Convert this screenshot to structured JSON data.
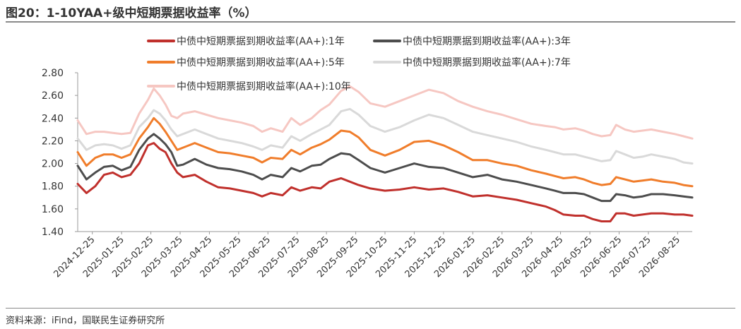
{
  "header": {
    "title": "图20：1-10YAA+级中短期票据收益率（%）"
  },
  "footer": {
    "source": "资料来源：iFind，国联民生证券研究所"
  },
  "chart_data": {
    "type": "line",
    "title": "图20：1-10YAA+级中短期票据收益率（%）",
    "xlabel": "",
    "ylabel": "",
    "ylim": [
      1.4,
      2.8
    ],
    "yticks": [
      "1.40",
      "1.60",
      "1.80",
      "2.00",
      "2.20",
      "2.40",
      "2.60",
      "2.80"
    ],
    "x_tick_labels": [
      "2024-12-25",
      "2025-01-25",
      "2025-02-25",
      "2025-03-25",
      "2025-04-25",
      "2025-05-25",
      "2025-06-25",
      "2025-07-25",
      "2025-08-25",
      "2025-09-25",
      "2025-10-25",
      "2025-11-25",
      "2025-12-25",
      "2026-01-25",
      "2026-02-25",
      "2026-03-25",
      "2026-04-25",
      "2026-05-25",
      "2026-06-25",
      "2026-07-25",
      "2026-08-25"
    ],
    "x_index_note": "x is month index from 2024-12-25 (0) to 2026-08-25 (20)",
    "grid": false,
    "legend_placement": "top",
    "series": [
      {
        "name": "中债中短期票据到期收益率(AA+):1年",
        "color": "#c0302c",
        "points": [
          [
            0,
            1.82
          ],
          [
            0.3,
            1.74
          ],
          [
            0.6,
            1.8
          ],
          [
            0.9,
            1.9
          ],
          [
            1.2,
            1.92
          ],
          [
            1.5,
            1.88
          ],
          [
            1.8,
            1.9
          ],
          [
            2.1,
            2.0
          ],
          [
            2.4,
            2.16
          ],
          [
            2.6,
            2.18
          ],
          [
            2.8,
            2.13
          ],
          [
            3.0,
            2.1
          ],
          [
            3.2,
            2.0
          ],
          [
            3.4,
            1.92
          ],
          [
            3.6,
            1.88
          ],
          [
            4.0,
            1.9
          ],
          [
            4.4,
            1.84
          ],
          [
            4.8,
            1.79
          ],
          [
            5.2,
            1.78
          ],
          [
            5.6,
            1.76
          ],
          [
            6.0,
            1.74
          ],
          [
            6.3,
            1.71
          ],
          [
            6.6,
            1.74
          ],
          [
            7.0,
            1.72
          ],
          [
            7.3,
            1.79
          ],
          [
            7.6,
            1.76
          ],
          [
            8.0,
            1.79
          ],
          [
            8.3,
            1.78
          ],
          [
            8.6,
            1.84
          ],
          [
            9.0,
            1.87
          ],
          [
            9.3,
            1.84
          ],
          [
            9.6,
            1.81
          ],
          [
            10.0,
            1.78
          ],
          [
            10.5,
            1.76
          ],
          [
            11.0,
            1.77
          ],
          [
            11.5,
            1.79
          ],
          [
            12.0,
            1.77
          ],
          [
            12.5,
            1.78
          ],
          [
            13.0,
            1.75
          ],
          [
            13.5,
            1.71
          ],
          [
            14.0,
            1.72
          ],
          [
            14.5,
            1.7
          ],
          [
            15.0,
            1.68
          ],
          [
            15.5,
            1.65
          ],
          [
            16.0,
            1.62
          ],
          [
            16.3,
            1.59
          ],
          [
            16.6,
            1.55
          ],
          [
            17.0,
            1.54
          ],
          [
            17.3,
            1.54
          ],
          [
            17.6,
            1.51
          ],
          [
            17.9,
            1.49
          ],
          [
            18.2,
            1.49
          ],
          [
            18.4,
            1.56
          ],
          [
            18.7,
            1.56
          ],
          [
            19.0,
            1.54
          ],
          [
            19.3,
            1.55
          ],
          [
            19.6,
            1.56
          ],
          [
            20.0,
            1.56
          ],
          [
            20.4,
            1.55
          ],
          [
            20.7,
            1.55
          ],
          [
            21.0,
            1.54
          ]
        ]
      },
      {
        "name": "中债中短期票据到期收益率(AA+):3年",
        "color": "#4d4d4d",
        "points": [
          [
            0,
            1.98
          ],
          [
            0.3,
            1.86
          ],
          [
            0.6,
            1.92
          ],
          [
            0.9,
            1.97
          ],
          [
            1.2,
            1.98
          ],
          [
            1.5,
            1.94
          ],
          [
            1.8,
            1.97
          ],
          [
            2.1,
            2.12
          ],
          [
            2.4,
            2.22
          ],
          [
            2.6,
            2.26
          ],
          [
            2.8,
            2.22
          ],
          [
            3.0,
            2.17
          ],
          [
            3.2,
            2.1
          ],
          [
            3.4,
            1.98
          ],
          [
            3.6,
            1.99
          ],
          [
            4.0,
            2.04
          ],
          [
            4.4,
            1.99
          ],
          [
            4.8,
            1.96
          ],
          [
            5.2,
            1.95
          ],
          [
            5.6,
            1.93
          ],
          [
            6.0,
            1.9
          ],
          [
            6.3,
            1.86
          ],
          [
            6.6,
            1.9
          ],
          [
            7.0,
            1.88
          ],
          [
            7.3,
            1.96
          ],
          [
            7.6,
            1.93
          ],
          [
            8.0,
            1.98
          ],
          [
            8.3,
            1.99
          ],
          [
            8.6,
            2.04
          ],
          [
            9.0,
            2.09
          ],
          [
            9.3,
            2.08
          ],
          [
            9.6,
            2.03
          ],
          [
            10.0,
            1.96
          ],
          [
            10.5,
            1.92
          ],
          [
            11.0,
            1.96
          ],
          [
            11.5,
            2.0
          ],
          [
            12.0,
            1.97
          ],
          [
            12.5,
            1.96
          ],
          [
            13.0,
            1.92
          ],
          [
            13.5,
            1.88
          ],
          [
            14.0,
            1.9
          ],
          [
            14.5,
            1.86
          ],
          [
            15.0,
            1.84
          ],
          [
            15.5,
            1.81
          ],
          [
            16.0,
            1.78
          ],
          [
            16.3,
            1.76
          ],
          [
            16.6,
            1.74
          ],
          [
            17.0,
            1.74
          ],
          [
            17.3,
            1.73
          ],
          [
            17.6,
            1.7
          ],
          [
            17.9,
            1.67
          ],
          [
            18.2,
            1.67
          ],
          [
            18.4,
            1.73
          ],
          [
            18.7,
            1.72
          ],
          [
            19.0,
            1.7
          ],
          [
            19.3,
            1.71
          ],
          [
            19.6,
            1.73
          ],
          [
            20.0,
            1.73
          ],
          [
            20.4,
            1.72
          ],
          [
            20.7,
            1.71
          ],
          [
            21.0,
            1.7
          ]
        ]
      },
      {
        "name": "中债中短期票据到期收益率(AA+):5年",
        "color": "#f07d2b",
        "points": [
          [
            0,
            2.1
          ],
          [
            0.3,
            1.98
          ],
          [
            0.6,
            2.05
          ],
          [
            0.9,
            2.08
          ],
          [
            1.2,
            2.08
          ],
          [
            1.5,
            2.05
          ],
          [
            1.8,
            2.08
          ],
          [
            2.1,
            2.22
          ],
          [
            2.4,
            2.32
          ],
          [
            2.6,
            2.4
          ],
          [
            2.8,
            2.35
          ],
          [
            3.0,
            2.28
          ],
          [
            3.2,
            2.2
          ],
          [
            3.4,
            2.12
          ],
          [
            3.6,
            2.14
          ],
          [
            4.0,
            2.18
          ],
          [
            4.4,
            2.14
          ],
          [
            4.8,
            2.1
          ],
          [
            5.2,
            2.09
          ],
          [
            5.6,
            2.07
          ],
          [
            6.0,
            2.05
          ],
          [
            6.3,
            2.01
          ],
          [
            6.6,
            2.05
          ],
          [
            7.0,
            2.04
          ],
          [
            7.3,
            2.12
          ],
          [
            7.6,
            2.08
          ],
          [
            8.0,
            2.14
          ],
          [
            8.3,
            2.17
          ],
          [
            8.6,
            2.21
          ],
          [
            9.0,
            2.29
          ],
          [
            9.3,
            2.28
          ],
          [
            9.6,
            2.23
          ],
          [
            10.0,
            2.12
          ],
          [
            10.5,
            2.07
          ],
          [
            11.0,
            2.12
          ],
          [
            11.5,
            2.19
          ],
          [
            12.0,
            2.2
          ],
          [
            12.5,
            2.16
          ],
          [
            13.0,
            2.1
          ],
          [
            13.5,
            2.03
          ],
          [
            14.0,
            2.03
          ],
          [
            14.5,
            2.0
          ],
          [
            15.0,
            1.98
          ],
          [
            15.5,
            1.94
          ],
          [
            16.0,
            1.91
          ],
          [
            16.3,
            1.89
          ],
          [
            16.6,
            1.87
          ],
          [
            17.0,
            1.88
          ],
          [
            17.3,
            1.86
          ],
          [
            17.6,
            1.83
          ],
          [
            17.9,
            1.81
          ],
          [
            18.2,
            1.82
          ],
          [
            18.4,
            1.88
          ],
          [
            18.7,
            1.86
          ],
          [
            19.0,
            1.84
          ],
          [
            19.3,
            1.85
          ],
          [
            19.6,
            1.86
          ],
          [
            20.0,
            1.84
          ],
          [
            20.4,
            1.83
          ],
          [
            20.7,
            1.81
          ],
          [
            21.0,
            1.8
          ]
        ]
      },
      {
        "name": "中债中短期票据到期收益率(AA+):7年",
        "color": "#d9d9d9",
        "points": [
          [
            0,
            2.22
          ],
          [
            0.3,
            2.12
          ],
          [
            0.6,
            2.16
          ],
          [
            0.9,
            2.17
          ],
          [
            1.2,
            2.16
          ],
          [
            1.5,
            2.13
          ],
          [
            1.8,
            2.16
          ],
          [
            2.1,
            2.32
          ],
          [
            2.4,
            2.4
          ],
          [
            2.6,
            2.47
          ],
          [
            2.8,
            2.44
          ],
          [
            3.0,
            2.38
          ],
          [
            3.2,
            2.3
          ],
          [
            3.4,
            2.24
          ],
          [
            3.6,
            2.26
          ],
          [
            4.0,
            2.3
          ],
          [
            4.4,
            2.26
          ],
          [
            4.8,
            2.22
          ],
          [
            5.2,
            2.2
          ],
          [
            5.6,
            2.18
          ],
          [
            6.0,
            2.15
          ],
          [
            6.3,
            2.12
          ],
          [
            6.6,
            2.16
          ],
          [
            7.0,
            2.14
          ],
          [
            7.3,
            2.24
          ],
          [
            7.6,
            2.2
          ],
          [
            8.0,
            2.26
          ],
          [
            8.3,
            2.3
          ],
          [
            8.6,
            2.34
          ],
          [
            9.0,
            2.46
          ],
          [
            9.3,
            2.48
          ],
          [
            9.6,
            2.43
          ],
          [
            10.0,
            2.33
          ],
          [
            10.5,
            2.28
          ],
          [
            11.0,
            2.32
          ],
          [
            11.5,
            2.38
          ],
          [
            12.0,
            2.43
          ],
          [
            12.5,
            2.4
          ],
          [
            13.0,
            2.34
          ],
          [
            13.5,
            2.28
          ],
          [
            14.0,
            2.25
          ],
          [
            14.5,
            2.22
          ],
          [
            15.0,
            2.19
          ],
          [
            15.5,
            2.15
          ],
          [
            16.0,
            2.12
          ],
          [
            16.3,
            2.1
          ],
          [
            16.6,
            2.08
          ],
          [
            17.0,
            2.08
          ],
          [
            17.3,
            2.06
          ],
          [
            17.6,
            2.04
          ],
          [
            17.9,
            2.02
          ],
          [
            18.2,
            2.03
          ],
          [
            18.4,
            2.11
          ],
          [
            18.7,
            2.08
          ],
          [
            19.0,
            2.05
          ],
          [
            19.3,
            2.06
          ],
          [
            19.6,
            2.08
          ],
          [
            20.0,
            2.06
          ],
          [
            20.4,
            2.04
          ],
          [
            20.7,
            2.01
          ],
          [
            21.0,
            2.0
          ]
        ]
      },
      {
        "name": "中债中短期票据到期收益率(AA+):10年",
        "color": "#f6c7c2",
        "points": [
          [
            0,
            2.38
          ],
          [
            0.3,
            2.26
          ],
          [
            0.6,
            2.28
          ],
          [
            0.9,
            2.28
          ],
          [
            1.2,
            2.27
          ],
          [
            1.5,
            2.26
          ],
          [
            1.8,
            2.27
          ],
          [
            2.1,
            2.44
          ],
          [
            2.4,
            2.56
          ],
          [
            2.6,
            2.66
          ],
          [
            2.8,
            2.6
          ],
          [
            3.0,
            2.52
          ],
          [
            3.2,
            2.42
          ],
          [
            3.4,
            2.4
          ],
          [
            3.6,
            2.44
          ],
          [
            4.0,
            2.46
          ],
          [
            4.4,
            2.43
          ],
          [
            4.8,
            2.4
          ],
          [
            5.2,
            2.38
          ],
          [
            5.6,
            2.36
          ],
          [
            6.0,
            2.33
          ],
          [
            6.3,
            2.28
          ],
          [
            6.6,
            2.31
          ],
          [
            7.0,
            2.28
          ],
          [
            7.3,
            2.4
          ],
          [
            7.6,
            2.34
          ],
          [
            8.0,
            2.4
          ],
          [
            8.3,
            2.47
          ],
          [
            8.6,
            2.52
          ],
          [
            9.0,
            2.64
          ],
          [
            9.3,
            2.68
          ],
          [
            9.6,
            2.63
          ],
          [
            10.0,
            2.53
          ],
          [
            10.5,
            2.5
          ],
          [
            11.0,
            2.55
          ],
          [
            11.5,
            2.6
          ],
          [
            12.0,
            2.65
          ],
          [
            12.5,
            2.62
          ],
          [
            13.0,
            2.55
          ],
          [
            13.5,
            2.5
          ],
          [
            14.0,
            2.46
          ],
          [
            14.5,
            2.43
          ],
          [
            15.0,
            2.39
          ],
          [
            15.5,
            2.35
          ],
          [
            16.0,
            2.33
          ],
          [
            16.3,
            2.32
          ],
          [
            16.6,
            2.3
          ],
          [
            17.0,
            2.31
          ],
          [
            17.3,
            2.29
          ],
          [
            17.6,
            2.26
          ],
          [
            17.9,
            2.24
          ],
          [
            18.2,
            2.25
          ],
          [
            18.4,
            2.34
          ],
          [
            18.7,
            2.3
          ],
          [
            19.0,
            2.28
          ],
          [
            19.3,
            2.29
          ],
          [
            19.6,
            2.3
          ],
          [
            20.0,
            2.28
          ],
          [
            20.4,
            2.26
          ],
          [
            20.7,
            2.24
          ],
          [
            21.0,
            2.22
          ]
        ]
      }
    ]
  }
}
